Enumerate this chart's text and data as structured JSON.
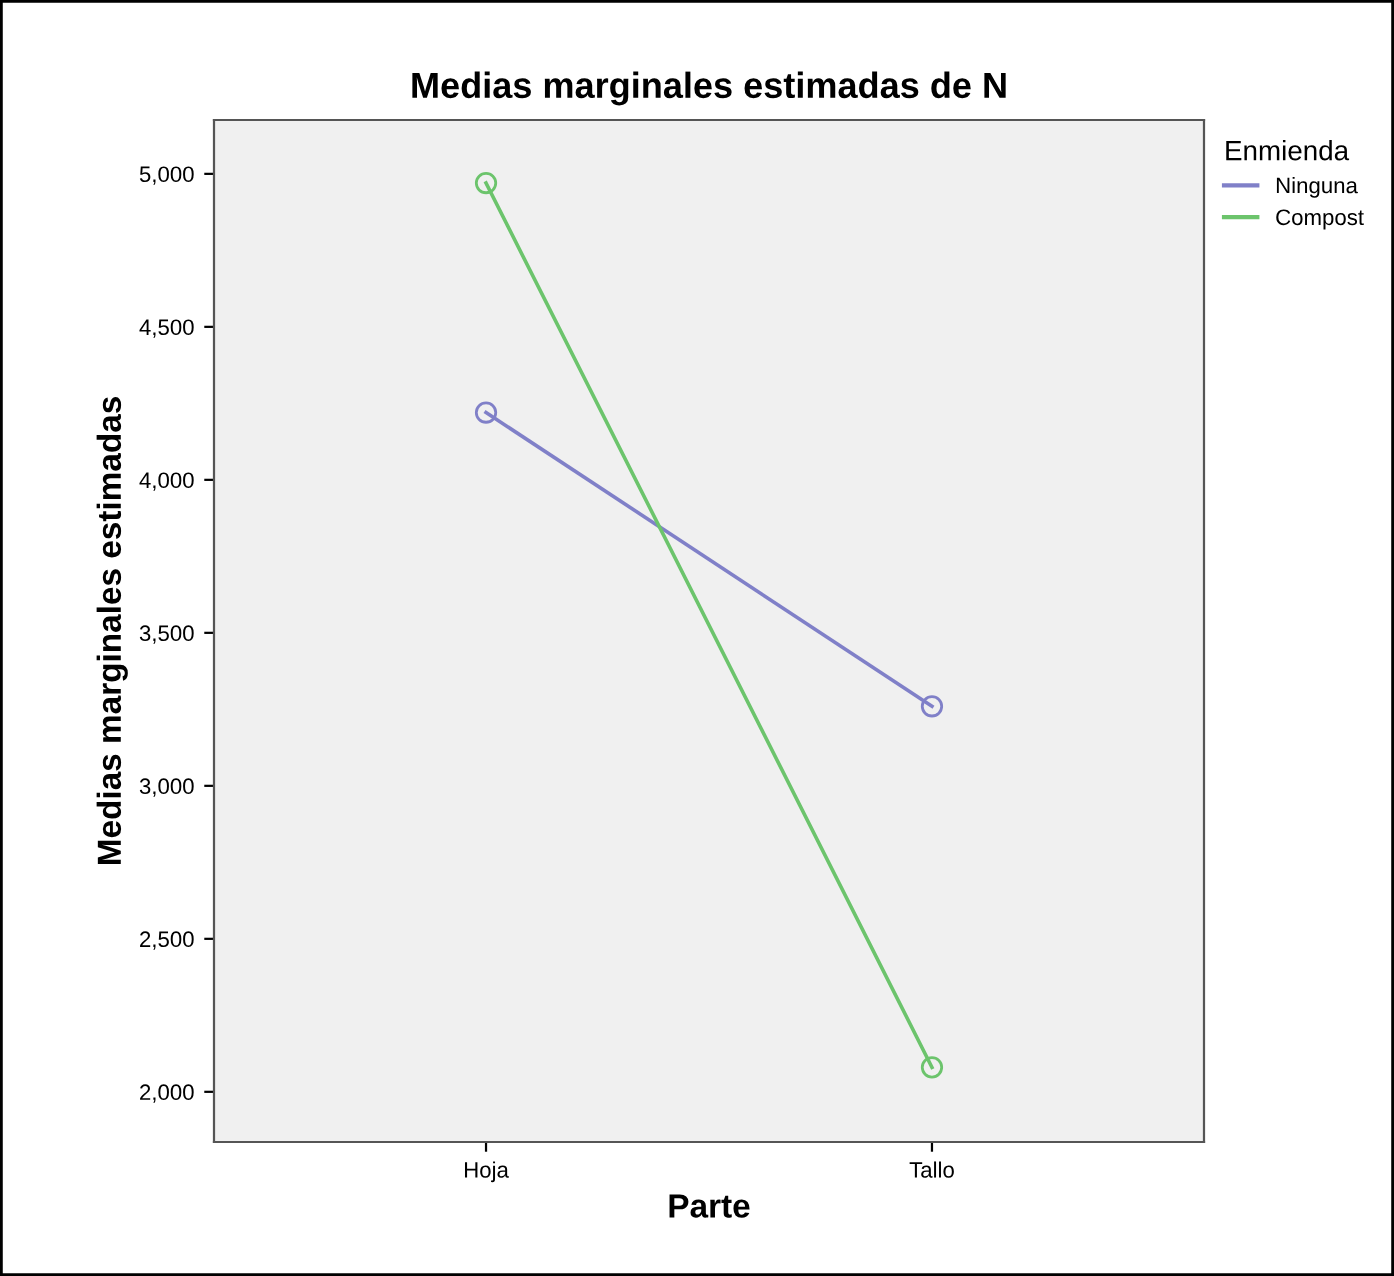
{
  "chart_data": {
    "type": "line",
    "title": "Medias marginales estimadas de N",
    "xlabel": "Parte",
    "ylabel": "Medias marginales estimadas",
    "categories": [
      "Hoja",
      "Tallo"
    ],
    "series": [
      {
        "name": "Ninguna",
        "color": "#8080c8",
        "values": [
          4220,
          3260
        ]
      },
      {
        "name": "Compost",
        "color": "#6cc46c",
        "values": [
          4970,
          2080
        ]
      }
    ],
    "ylim": [
      1836,
      5176
    ],
    "yticks": [
      {
        "value": 2000,
        "label": "2,000"
      },
      {
        "value": 2500,
        "label": "2,500"
      },
      {
        "value": 3000,
        "label": "3,000"
      },
      {
        "value": 3500,
        "label": "3,500"
      },
      {
        "value": 4000,
        "label": "4,000"
      },
      {
        "value": 4500,
        "label": "4,500"
      },
      {
        "value": 5000,
        "label": "5,000"
      }
    ],
    "legend_title": "Enmienda",
    "legend": "top right",
    "grid": false,
    "marker": "circle",
    "line_style": "solid"
  }
}
